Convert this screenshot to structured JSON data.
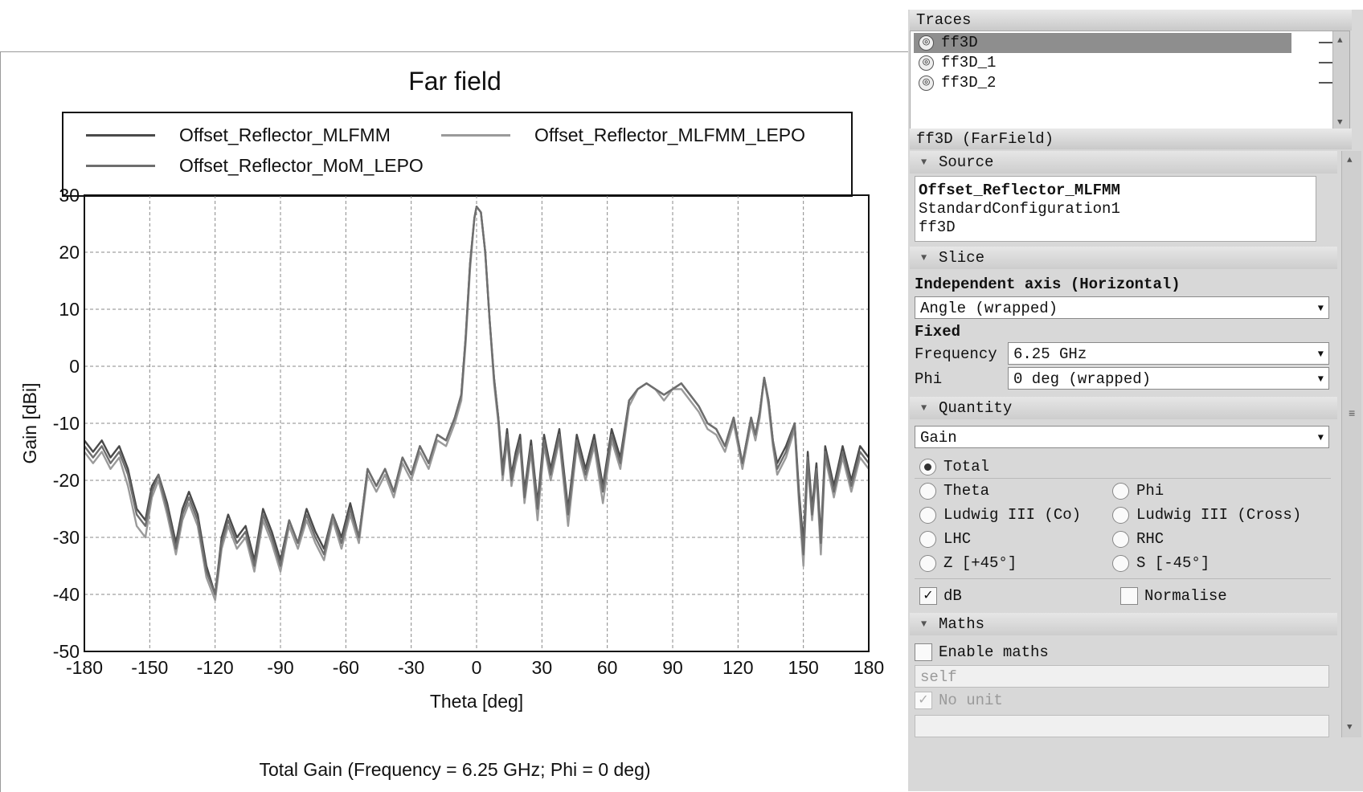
{
  "chart": {
    "title": "Far field",
    "footer": "Total Gain (Frequency = 6.25 GHz; Phi = 0 deg)",
    "legend": [
      {
        "name": "Offset_Reflector_MLFMM",
        "color": "#4a4a4a"
      },
      {
        "name": "Offset_Reflector_MLFMM_LEPO",
        "color": "#9a9a9a"
      },
      {
        "name": "Offset_Reflector_MoM_LEPO",
        "color": "#6e6e6e"
      }
    ]
  },
  "chart_data": {
    "type": "line",
    "title": "Far field",
    "xlabel": "Theta [deg]",
    "ylabel": "Gain [dBi]",
    "xlim": [
      -180,
      180
    ],
    "ylim": [
      -50,
      30
    ],
    "xticks": [
      -180,
      -150,
      -120,
      -90,
      -60,
      -30,
      0,
      30,
      60,
      90,
      120,
      150,
      180
    ],
    "yticks": [
      30,
      20,
      10,
      0,
      -10,
      -20,
      -30,
      -40,
      -50
    ],
    "grid": true,
    "legend_placement": "top",
    "series": [
      {
        "name": "Offset_Reflector_MLFMM",
        "x": [
          -180,
          -176,
          -172,
          -168,
          -164,
          -160,
          -156,
          -152,
          -149,
          -146,
          -142,
          -138,
          -135,
          -132,
          -128,
          -124,
          -120,
          -117,
          -114,
          -110,
          -106,
          -102,
          -98,
          -94,
          -90,
          -86,
          -82,
          -78,
          -74,
          -70,
          -66,
          -62,
          -58,
          -54,
          -50,
          -46,
          -42,
          -38,
          -34,
          -30,
          -26,
          -22,
          -18,
          -14,
          -10,
          -7,
          -5,
          -3,
          -1,
          0,
          2,
          4,
          6,
          8,
          10,
          12,
          14,
          16,
          18,
          20,
          22,
          25,
          28,
          31,
          34,
          38,
          42,
          46,
          50,
          54,
          58,
          62,
          66,
          70,
          74,
          78,
          82,
          86,
          90,
          94,
          98,
          102,
          106,
          110,
          114,
          118,
          122,
          126,
          128,
          130,
          132,
          134,
          136,
          138,
          142,
          146,
          148,
          150,
          152,
          154,
          156,
          158,
          160,
          164,
          168,
          172,
          176,
          180
        ],
        "values": [
          -13,
          -15,
          -13,
          -16,
          -14,
          -18,
          -25,
          -27,
          -21,
          -19,
          -24,
          -31,
          -25,
          -22,
          -26,
          -35,
          -40,
          -30,
          -26,
          -30,
          -28,
          -34,
          -25,
          -29,
          -34,
          -27,
          -31,
          -25,
          -29,
          -32,
          -26,
          -30,
          -24,
          -30,
          -18,
          -21,
          -18,
          -22,
          -16,
          -19,
          -14,
          -17,
          -12,
          -13,
          -9,
          -5,
          5,
          18,
          26,
          28,
          27,
          20,
          8,
          -2,
          -9,
          -18,
          -11,
          -19,
          -15,
          -12,
          -22,
          -13,
          -24,
          -12,
          -18,
          -11,
          -25,
          -12,
          -18,
          -12,
          -21,
          -11,
          -16,
          -6,
          -4,
          -3,
          -4,
          -5,
          -4,
          -3,
          -5,
          -7,
          -10,
          -11,
          -14,
          -9,
          -17,
          -9,
          -12,
          -8,
          -2,
          -6,
          -13,
          -17,
          -14,
          -10,
          -22,
          -31,
          -15,
          -25,
          -17,
          -30,
          -14,
          -21,
          -14,
          -20,
          -14,
          -16
        ]
      },
      {
        "name": "Offset_Reflector_MLFMM_LEPO",
        "x": [
          -180,
          -176,
          -172,
          -168,
          -164,
          -160,
          -156,
          -152,
          -149,
          -146,
          -142,
          -138,
          -135,
          -132,
          -128,
          -124,
          -120,
          -117,
          -114,
          -110,
          -106,
          -102,
          -98,
          -94,
          -90,
          -86,
          -82,
          -78,
          -74,
          -70,
          -66,
          -62,
          -58,
          -54,
          -50,
          -46,
          -42,
          -38,
          -34,
          -30,
          -26,
          -22,
          -18,
          -14,
          -10,
          -7,
          -5,
          -3,
          -1,
          0,
          2,
          4,
          6,
          8,
          10,
          12,
          14,
          16,
          18,
          20,
          22,
          25,
          28,
          31,
          34,
          38,
          42,
          46,
          50,
          54,
          58,
          62,
          66,
          70,
          74,
          78,
          82,
          86,
          90,
          94,
          98,
          102,
          106,
          110,
          114,
          118,
          122,
          126,
          128,
          130,
          132,
          134,
          136,
          138,
          142,
          146,
          148,
          150,
          152,
          154,
          156,
          158,
          160,
          164,
          168,
          172,
          176,
          180
        ],
        "values": [
          -15,
          -17,
          -15,
          -18,
          -16,
          -21,
          -28,
          -30,
          -23,
          -20,
          -26,
          -33,
          -27,
          -24,
          -28,
          -37,
          -41,
          -32,
          -28,
          -32,
          -30,
          -36,
          -27,
          -31,
          -36,
          -28,
          -32,
          -27,
          -31,
          -34,
          -27,
          -32,
          -26,
          -31,
          -19,
          -22,
          -19,
          -23,
          -17,
          -20,
          -15,
          -18,
          -13,
          -14,
          -10,
          -6,
          4,
          17,
          26,
          28,
          27,
          20,
          8,
          -3,
          -10,
          -20,
          -13,
          -21,
          -17,
          -14,
          -24,
          -15,
          -27,
          -14,
          -20,
          -13,
          -28,
          -14,
          -20,
          -14,
          -24,
          -13,
          -18,
          -7,
          -4,
          -3,
          -4,
          -6,
          -4,
          -4,
          -6,
          -8,
          -11,
          -12,
          -15,
          -10,
          -18,
          -10,
          -13,
          -9,
          -2,
          -7,
          -14,
          -19,
          -16,
          -11,
          -24,
          -35,
          -17,
          -27,
          -19,
          -33,
          -16,
          -23,
          -16,
          -22,
          -16,
          -18
        ]
      },
      {
        "name": "Offset_Reflector_MoM_LEPO",
        "x": [
          -180,
          -176,
          -172,
          -168,
          -164,
          -160,
          -156,
          -152,
          -149,
          -146,
          -142,
          -138,
          -135,
          -132,
          -128,
          -124,
          -120,
          -117,
          -114,
          -110,
          -106,
          -102,
          -98,
          -94,
          -90,
          -86,
          -82,
          -78,
          -74,
          -70,
          -66,
          -62,
          -58,
          -54,
          -50,
          -46,
          -42,
          -38,
          -34,
          -30,
          -26,
          -22,
          -18,
          -14,
          -10,
          -7,
          -5,
          -3,
          -1,
          0,
          2,
          4,
          6,
          8,
          10,
          12,
          14,
          16,
          18,
          20,
          22,
          25,
          28,
          31,
          34,
          38,
          42,
          46,
          50,
          54,
          58,
          62,
          66,
          70,
          74,
          78,
          82,
          86,
          90,
          94,
          98,
          102,
          106,
          110,
          114,
          118,
          122,
          126,
          128,
          130,
          132,
          134,
          136,
          138,
          142,
          146,
          148,
          150,
          152,
          154,
          156,
          158,
          160,
          164,
          168,
          172,
          176,
          180
        ],
        "values": [
          -14,
          -16,
          -14,
          -17,
          -15,
          -19,
          -26,
          -28,
          -22,
          -19,
          -25,
          -32,
          -26,
          -23,
          -27,
          -36,
          -40,
          -31,
          -27,
          -31,
          -29,
          -35,
          -26,
          -30,
          -35,
          -27,
          -31,
          -26,
          -30,
          -33,
          -26,
          -31,
          -25,
          -30,
          -18,
          -21,
          -18,
          -22,
          -16,
          -19,
          -14,
          -17,
          -12,
          -13,
          -9,
          -5,
          5,
          18,
          26,
          28,
          27,
          20,
          8,
          -2,
          -9,
          -19,
          -12,
          -20,
          -16,
          -13,
          -23,
          -14,
          -25,
          -13,
          -19,
          -12,
          -26,
          -13,
          -19,
          -13,
          -22,
          -12,
          -17,
          -6,
          -4,
          -3,
          -4,
          -5,
          -4,
          -3,
          -5,
          -7,
          -10,
          -11,
          -14,
          -9,
          -17,
          -9,
          -12,
          -8,
          -2,
          -6,
          -13,
          -18,
          -15,
          -10,
          -23,
          -33,
          -16,
          -26,
          -18,
          -31,
          -15,
          -22,
          -15,
          -21,
          -15,
          -17
        ]
      }
    ]
  },
  "side": {
    "traces_title": "Traces",
    "traces": [
      "ff3D",
      "ff3D_1",
      "ff3D_2"
    ],
    "props_title": "ff3D (FarField)",
    "source_head": "Source",
    "source_lines": [
      "Offset_Reflector_MLFMM",
      "StandardConfiguration1",
      "ff3D"
    ],
    "slice_head": "Slice",
    "independent_axis_label": "Independent axis (Horizontal)",
    "independent_axis_value": "Angle (wrapped)",
    "fixed_label": "Fixed",
    "frequency_label": "Frequency",
    "frequency_value": "6.25 GHz",
    "phi_label": "Phi",
    "phi_value": "0 deg (wrapped)",
    "quantity_head": "Quantity",
    "quantity_value": "Gain",
    "radios": {
      "total": "Total",
      "theta": "Theta",
      "phi": "Phi",
      "ludwig_co": "Ludwig III (Co)",
      "ludwig_cross": "Ludwig III (Cross)",
      "lhc": "LHC",
      "rhc": "RHC",
      "z": "Z [+45°]",
      "s": "S [-45°]"
    },
    "db_label": "dB",
    "normalise_label": "Normalise",
    "maths_head": "Maths",
    "enable_maths_label": "Enable maths",
    "maths_input": "self",
    "no_unit_label": "No unit"
  }
}
